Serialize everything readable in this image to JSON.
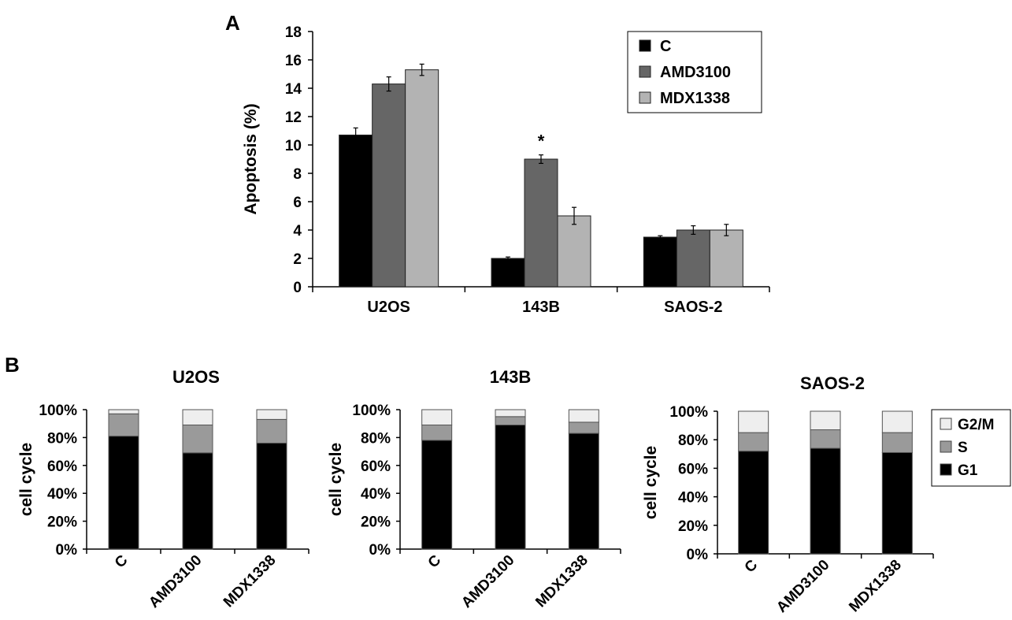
{
  "panels": {
    "a_label": "A",
    "b_label": "B"
  },
  "colors": {
    "C": "#000000",
    "AMD3100": "#666666",
    "MDX1338": "#b3b3b3",
    "G1": "#000000",
    "S": "#9a9a9a",
    "G2M": "#eeeeee"
  },
  "chart_data": [
    {
      "type": "bar",
      "panel": "A",
      "ylabel": "Apoptosis (%)",
      "categories": [
        "U2OS",
        "143B",
        "SAOS-2"
      ],
      "ylim": [
        0,
        18
      ],
      "yticks": [
        "0",
        "2",
        "4",
        "6",
        "8",
        "10",
        "12",
        "14",
        "16",
        "18"
      ],
      "series": [
        {
          "name": "C",
          "values": [
            10.7,
            2.0,
            3.5
          ],
          "errors": [
            0.5,
            0.1,
            0.1
          ]
        },
        {
          "name": "AMD3100",
          "values": [
            14.3,
            9.0,
            4.0
          ],
          "errors": [
            0.5,
            0.3,
            0.3
          ]
        },
        {
          "name": "MDX1338",
          "values": [
            15.3,
            5.0,
            4.0
          ],
          "errors": [
            0.4,
            0.6,
            0.4
          ]
        }
      ],
      "annotations": [
        {
          "text": "*",
          "category": "143B",
          "series": "AMD3100"
        }
      ],
      "legend": "top-right",
      "grid": false
    },
    {
      "type": "bar",
      "stacked": true,
      "panel": "B",
      "title": "U2OS",
      "ylabel": "cell cycle",
      "categories": [
        "C",
        "AMD3100",
        "MDX1338"
      ],
      "yticks": [
        "0%",
        "20%",
        "40%",
        "60%",
        "80%",
        "100%"
      ],
      "series": [
        {
          "name": "G1",
          "values": [
            81,
            69,
            76
          ]
        },
        {
          "name": "S",
          "values": [
            16,
            20,
            17
          ]
        },
        {
          "name": "G2/M",
          "values": [
            3,
            11,
            7
          ]
        }
      ]
    },
    {
      "type": "bar",
      "stacked": true,
      "panel": "B",
      "title": "143B",
      "ylabel": "cell cycle",
      "categories": [
        "C",
        "AMD3100",
        "MDX1338"
      ],
      "yticks": [
        "0%",
        "20%",
        "40%",
        "60%",
        "80%",
        "100%"
      ],
      "series": [
        {
          "name": "G1",
          "values": [
            78,
            89,
            83
          ]
        },
        {
          "name": "S",
          "values": [
            11,
            6,
            8
          ]
        },
        {
          "name": "G2/M",
          "values": [
            11,
            5,
            9
          ]
        }
      ]
    },
    {
      "type": "bar",
      "stacked": true,
      "panel": "B",
      "title": "SAOS-2",
      "ylabel": "cell cycle",
      "categories": [
        "C",
        "AMD3100",
        "MDX1338"
      ],
      "yticks": [
        "0%",
        "20%",
        "40%",
        "60%",
        "80%",
        "100%"
      ],
      "series": [
        {
          "name": "G1",
          "values": [
            72,
            74,
            71
          ]
        },
        {
          "name": "S",
          "values": [
            13,
            13,
            14
          ]
        },
        {
          "name": "G2/M",
          "values": [
            15,
            13,
            15
          ]
        }
      ],
      "legend": "right"
    }
  ]
}
